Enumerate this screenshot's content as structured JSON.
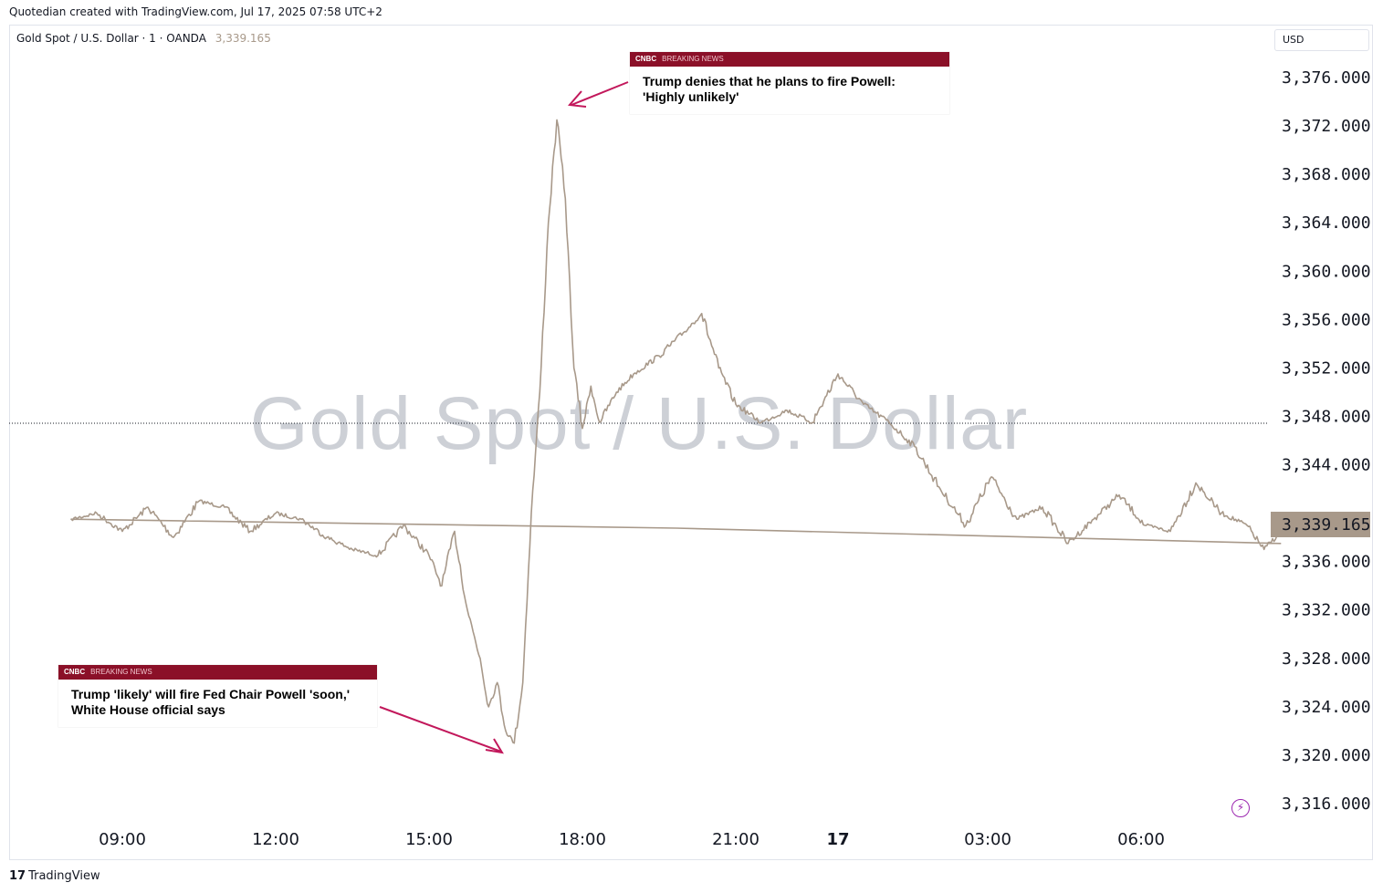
{
  "header": {
    "created_text": "Quotedian created with TradingView.com, Jul 17, 2025 07:58 UTC+2"
  },
  "legend": {
    "symbol": "Gold Spot / U.S. Dollar · 1 · OANDA",
    "price": "3,339.165"
  },
  "currency_label": "USD",
  "watermark": "Gold Spot / U.S. Dollar",
  "footer": {
    "logo": "17",
    "brand": "TradingView"
  },
  "colors": {
    "line": "#a8998a",
    "news_bar": "#8b1028",
    "arrow": "#c2185b",
    "last_price_box": "#a8998a",
    "alert_icon": "#9c27b0"
  },
  "icons": {
    "alert": "lightning-bolt-icon"
  },
  "news": [
    {
      "source": "CNBC",
      "tag": "BREAKING NEWS",
      "headline": "Trump denies that he plans to fire Powell: 'Highly unlikely'"
    },
    {
      "source": "CNBC",
      "tag": "BREAKING NEWS",
      "headline": "Trump 'likely' will fire Fed Chair Powell 'soon,' White House official says"
    }
  ],
  "chart_data": {
    "type": "line",
    "title": "Gold Spot / U.S. Dollar · 1 · OANDA",
    "series": [
      {
        "name": "Gold Spot / U.S. Dollar",
        "x": [
          "07:40",
          "08:00",
          "08:30",
          "09:00",
          "09:30",
          "10:00",
          "10:30",
          "11:00",
          "11:30",
          "12:00",
          "12:30",
          "13:00",
          "13:30",
          "14:00",
          "14:30",
          "15:00",
          "15:15",
          "15:30",
          "15:45",
          "16:00",
          "16:10",
          "16:20",
          "16:30",
          "16:40",
          "16:50",
          "17:00",
          "17:10",
          "17:20",
          "17:30",
          "17:40",
          "17:50",
          "18:00",
          "18:10",
          "18:20",
          "18:40",
          "19:00",
          "19:30",
          "20:00",
          "20:20",
          "20:40",
          "21:00",
          "21:30",
          "22:00",
          "22:30",
          "23:00",
          "23:30",
          "00:00",
          "00:30",
          "01:00",
          "01:30",
          "02:00",
          "02:30",
          "03:00",
          "03:30",
          "04:00",
          "04:30",
          "05:00",
          "05:30",
          "06:00",
          "06:30",
          "07:00",
          "07:20",
          "07:40",
          "07:58"
        ],
        "y": [
          3337.5,
          3339.5,
          3340.0,
          3338.5,
          3340.5,
          3338.0,
          3341.0,
          3340.5,
          3338.5,
          3340.0,
          3339.5,
          3338.0,
          3337.0,
          3336.5,
          3339.0,
          3336.5,
          3334.0,
          3338.5,
          3332.0,
          3328.0,
          3324.0,
          3326.0,
          3322.0,
          3321.0,
          3326.0,
          3340.0,
          3350.0,
          3364.0,
          3372.5,
          3366.0,
          3352.0,
          3347.0,
          3350.5,
          3347.5,
          3350.0,
          3351.5,
          3353.0,
          3355.0,
          3356.5,
          3352.0,
          3349.0,
          3347.5,
          3348.5,
          3347.5,
          3351.5,
          3349.0,
          3347.5,
          3345.5,
          3342.0,
          3339.0,
          3343.0,
          3339.5,
          3340.5,
          3337.5,
          3339.5,
          3341.5,
          3339.0,
          3338.5,
          3342.5,
          3340.0,
          3339.0,
          3337.0,
          3338.5,
          3339.165
        ]
      }
    ],
    "y_ticks": [
      "3,376.000",
      "3,372.000",
      "3,368.000",
      "3,364.000",
      "3,360.000",
      "3,356.000",
      "3,352.000",
      "3,348.000",
      "3,344.000",
      "3,340.000",
      "3,336.000",
      "3,332.000",
      "3,328.000",
      "3,324.000",
      "3,320.000",
      "3,316.000"
    ],
    "x_ticks": [
      "09:00",
      "12:00",
      "15:00",
      "18:00",
      "21:00",
      "17",
      "03:00",
      "06:00"
    ],
    "ylim": [
      3314,
      3380
    ],
    "last_price": "3,339.165",
    "dotted_level": 3347.5,
    "grid": false,
    "legend_position": "top-left"
  }
}
